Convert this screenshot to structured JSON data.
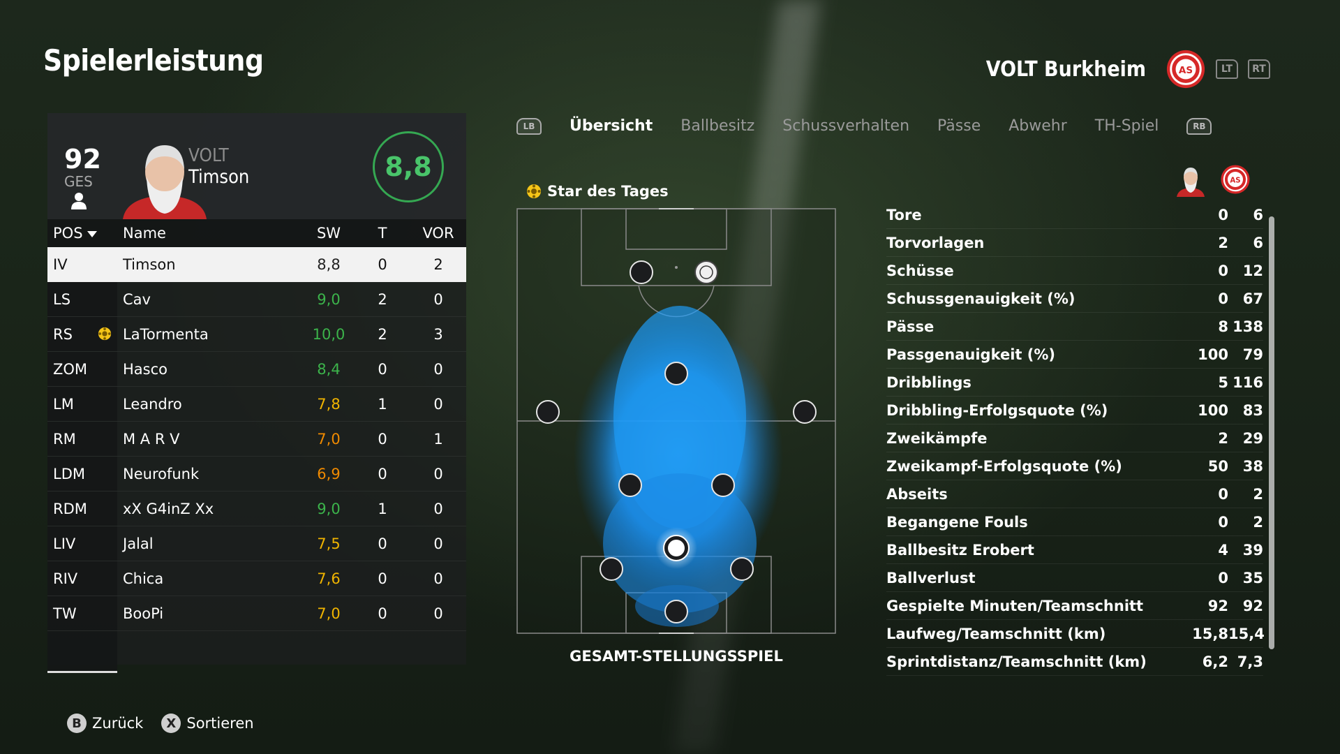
{
  "page_title": "Spielerleistung",
  "team": {
    "name": "VOLT Burkheim",
    "lt": "LT",
    "rt": "RT"
  },
  "player_card": {
    "ges_value": "92",
    "ges_label": "GES",
    "club_short": "VOLT",
    "name": "Timson",
    "rating": "8,8"
  },
  "table": {
    "headers": {
      "pos": "POS",
      "name": "Name",
      "sw": "SW",
      "t": "T",
      "vor": "VOR"
    },
    "rows": [
      {
        "pos": "IV",
        "name": "Timson",
        "sw": "8,8",
        "t": "0",
        "vor": "2",
        "color": "#222222"
      },
      {
        "pos": "LS",
        "name": "Cav",
        "sw": "9,0",
        "t": "2",
        "vor": "0",
        "color": "#3cb44b"
      },
      {
        "pos": "RS",
        "name": "LaTormenta",
        "sw": "10,0",
        "t": "2",
        "vor": "3",
        "color": "#3cb44b"
      },
      {
        "pos": "ZOM",
        "name": "Hasco",
        "sw": "8,4",
        "t": "0",
        "vor": "0",
        "color": "#3cb44b"
      },
      {
        "pos": "LM",
        "name": "Leandro",
        "sw": "7,8",
        "t": "1",
        "vor": "0",
        "color": "#f0b400"
      },
      {
        "pos": "RM",
        "name": "M A R V",
        "sw": "7,0",
        "t": "0",
        "vor": "1",
        "color": "#f08a00"
      },
      {
        "pos": "LDM",
        "name": "Neurofunk",
        "sw": "6,9",
        "t": "0",
        "vor": "0",
        "color": "#f08a00"
      },
      {
        "pos": "RDM",
        "name": "xX G4inZ Xx",
        "sw": "9,0",
        "t": "1",
        "vor": "0",
        "color": "#3cb44b"
      },
      {
        "pos": "LIV",
        "name": "Jalal",
        "sw": "7,5",
        "t": "0",
        "vor": "0",
        "color": "#f0b400"
      },
      {
        "pos": "RIV",
        "name": "Chica",
        "sw": "7,6",
        "t": "0",
        "vor": "0",
        "color": "#f0b400"
      },
      {
        "pos": "TW",
        "name": "BooPi",
        "sw": "7,0",
        "t": "0",
        "vor": "0",
        "color": "#f0b400"
      }
    ]
  },
  "tabs": {
    "lb": "LB",
    "rb": "RB",
    "items": [
      "Übersicht",
      "Ballbesitz",
      "Schussverhalten",
      "Pässe",
      "Abwehr",
      "TH-Spiel"
    ]
  },
  "star_label": "Star des Tages",
  "pitch_caption": "GESAMT-STELLUNGSSPIEL",
  "stats": [
    {
      "label": "Tore",
      "player": "0",
      "team": "6"
    },
    {
      "label": "Torvorlagen",
      "player": "2",
      "team": "6"
    },
    {
      "label": "Schüsse",
      "player": "0",
      "team": "12"
    },
    {
      "label": "Schussgenauigkeit (%)",
      "player": "0",
      "team": "67"
    },
    {
      "label": "Pässe",
      "player": "8",
      "team": "138"
    },
    {
      "label": "Passgenauigkeit (%)",
      "player": "100",
      "team": "79"
    },
    {
      "label": "Dribblings",
      "player": "5",
      "team": "116"
    },
    {
      "label": "Dribbling-Erfolgsquote (%)",
      "player": "100",
      "team": "83"
    },
    {
      "label": "Zweikämpfe",
      "player": "2",
      "team": "29"
    },
    {
      "label": "Zweikampf-Erfolgsquote (%)",
      "player": "50",
      "team": "38"
    },
    {
      "label": "Abseits",
      "player": "0",
      "team": "2"
    },
    {
      "label": "Begangene Fouls",
      "player": "0",
      "team": "2"
    },
    {
      "label": "Ballbesitz Erobert",
      "player": "4",
      "team": "39"
    },
    {
      "label": "Ballverlust",
      "player": "0",
      "team": "35"
    },
    {
      "label": "Gespielte Minuten/Teamschnitt",
      "player": "92",
      "team": "92"
    },
    {
      "label": "Laufweg/Teamschnitt (km)",
      "player": "15,8",
      "team": "15,4"
    },
    {
      "label": "Sprintdistanz/Teamschnitt (km)",
      "player": "6,2",
      "team": "7,3"
    }
  ],
  "footer": {
    "back_glyph": "B",
    "back_label": "Zurück",
    "sort_glyph": "X",
    "sort_label": "Sortieren"
  },
  "colors": {
    "accent_green": "#35a852",
    "heat_blue": "#1e90ff",
    "crest_red": "#d62828"
  },
  "icons": [
    "person-icon",
    "star-of-match-icon",
    "club-crest-icon",
    "sort-arrow-icon",
    "player-avatar"
  ]
}
